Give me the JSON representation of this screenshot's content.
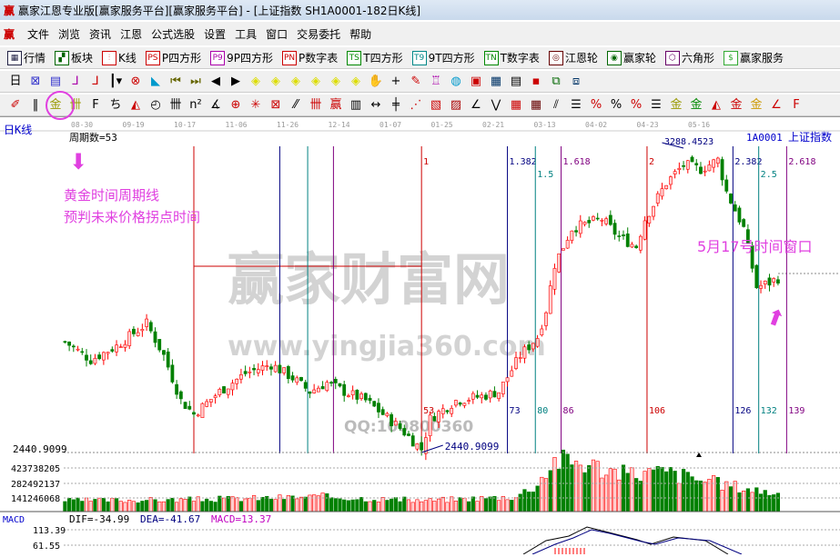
{
  "window": {
    "title": "赢家江恩专业版[赢家服务平台][赢家服务平台] - [上证指数  SH1A0001-182日K线]",
    "logo": "赢"
  },
  "menu": [
    "文件",
    "浏览",
    "资讯",
    "江恩",
    "公式选股",
    "设置",
    "工具",
    "窗口",
    "交易委托",
    "帮助"
  ],
  "toolbar1": [
    {
      "label": "行情",
      "icon": "grid-icon",
      "glyph": "▦",
      "color": "#224"
    },
    {
      "label": "板块",
      "icon": "blocks-icon",
      "glyph": "▞",
      "color": "#060"
    },
    {
      "label": "K线",
      "icon": "kline-icon",
      "glyph": "⫶",
      "color": "#c00"
    },
    {
      "label": "P四方形",
      "icon": "ps-icon",
      "glyph": "PS",
      "color": "#c00"
    },
    {
      "label": "9P四方形",
      "icon": "p9-icon",
      "glyph": "P9",
      "color": "#a0a"
    },
    {
      "label": "P数字表",
      "icon": "pn-icon",
      "glyph": "PN",
      "color": "#c00"
    },
    {
      "label": "T四方形",
      "icon": "ts-icon",
      "glyph": "TS",
      "color": "#080"
    },
    {
      "label": "9T四方形",
      "icon": "t9-icon",
      "glyph": "T9",
      "color": "#088"
    },
    {
      "label": "T数字表",
      "icon": "tn-icon",
      "glyph": "TN",
      "color": "#080"
    },
    {
      "label": "江恩轮",
      "icon": "gann-wheel-icon",
      "glyph": "◎",
      "color": "#600"
    },
    {
      "label": "赢家轮",
      "icon": "winner-wheel-icon",
      "glyph": "◉",
      "color": "#060"
    },
    {
      "label": "六角形",
      "icon": "hexagon-icon",
      "glyph": "⬡",
      "color": "#606"
    },
    {
      "label": "赢家服务",
      "icon": "dollar-icon",
      "glyph": "$",
      "color": "#3a3"
    }
  ],
  "toolbar2": [
    {
      "icon": "period-day-icon",
      "glyph": "日▾",
      "color": "#000"
    },
    {
      "icon": "chart-icon",
      "glyph": "⊠",
      "color": "#33c"
    },
    {
      "icon": "doc-icon",
      "glyph": "▤",
      "color": "#33c"
    },
    {
      "icon": "indicator3-icon",
      "glyph": "⅃",
      "color": "#a0a"
    },
    {
      "icon": "indicator9-icon",
      "glyph": "⅃",
      "color": "#c00"
    },
    {
      "icon": "candle-icon",
      "glyph": "┃▾",
      "color": "#000"
    },
    {
      "icon": "cross-icon",
      "glyph": "⊗",
      "color": "#c00"
    },
    {
      "icon": "color-icon",
      "glyph": "◣",
      "color": "#09c"
    },
    {
      "icon": "first-icon",
      "glyph": "⏮",
      "color": "#660"
    },
    {
      "icon": "last-icon",
      "glyph": "⏭",
      "color": "#660"
    },
    {
      "icon": "left-icon",
      "glyph": "◀",
      "color": "#000"
    },
    {
      "icon": "right-icon",
      "glyph": "▶",
      "color": "#000"
    },
    {
      "icon": "zoom-left-icon",
      "glyph": "◈",
      "color": "#dd0"
    },
    {
      "icon": "zoom-right-icon",
      "glyph": "◈",
      "color": "#dd0"
    },
    {
      "icon": "expand-icon",
      "glyph": "◈",
      "color": "#dd0"
    },
    {
      "icon": "shrink-icon",
      "glyph": "◈",
      "color": "#dd0"
    },
    {
      "icon": "up-icon",
      "glyph": "◈",
      "color": "#dd0"
    },
    {
      "icon": "down-icon",
      "glyph": "◈",
      "color": "#dd0"
    },
    {
      "icon": "hand-icon",
      "glyph": "✋",
      "color": "#000"
    },
    {
      "icon": "crosshair-icon",
      "glyph": "+",
      "color": "#000"
    },
    {
      "icon": "pen-icon",
      "glyph": "✎",
      "color": "#c00"
    },
    {
      "icon": "tool-icon",
      "glyph": "♖",
      "color": "#a0a"
    },
    {
      "icon": "globe-icon",
      "glyph": "◍",
      "color": "#09c"
    },
    {
      "icon": "calendar-icon",
      "glyph": "▣",
      "color": "#c00"
    },
    {
      "icon": "calculator-icon",
      "glyph": "▦",
      "color": "#036"
    },
    {
      "icon": "notes-icon",
      "glyph": "▤",
      "color": "#000"
    },
    {
      "icon": "save-icon",
      "glyph": "▪",
      "color": "#c00"
    },
    {
      "icon": "network-icon",
      "glyph": "⧉",
      "color": "#060"
    },
    {
      "icon": "export-icon",
      "glyph": "⧈",
      "color": "#036"
    }
  ],
  "toolbar3": [
    {
      "icon": "pencil-icon",
      "glyph": "✐",
      "color": "#c00"
    },
    {
      "icon": "parallel-icon",
      "glyph": "‖",
      "color": "#000"
    },
    {
      "icon": "golden-time-cycle-icon",
      "glyph": "金",
      "color": "#990"
    },
    {
      "icon": "time-cycle-icon",
      "glyph": "卌",
      "color": "#990"
    },
    {
      "icon": "fib-icon",
      "glyph": "F",
      "color": "#000"
    },
    {
      "icon": "spiral-icon",
      "glyph": "ち",
      "color": "#000"
    },
    {
      "icon": "fan-icon",
      "glyph": "◭",
      "color": "#c00"
    },
    {
      "icon": "circle-icon",
      "glyph": "◴",
      "color": "#000"
    },
    {
      "icon": "lines-icon",
      "glyph": "卌",
      "color": "#000"
    },
    {
      "icon": "n2-icon",
      "glyph": "n²",
      "color": "#000"
    },
    {
      "icon": "angle-icon",
      "glyph": "∡",
      "color": "#000"
    },
    {
      "icon": "target-icon",
      "glyph": "⊕",
      "color": "#c00"
    },
    {
      "icon": "star-icon",
      "glyph": "✳",
      "color": "#c00"
    },
    {
      "icon": "box-icon",
      "glyph": "⊠",
      "color": "#c00"
    },
    {
      "icon": "slash-icon",
      "glyph": "⁄⁄",
      "color": "#000"
    },
    {
      "icon": "bars-icon",
      "glyph": "卌",
      "color": "#c00"
    },
    {
      "icon": "winner-icon",
      "glyph": "赢",
      "color": "#c00"
    },
    {
      "icon": "ruler-icon",
      "glyph": "▥",
      "color": "#000"
    },
    {
      "icon": "width-icon",
      "glyph": "↔",
      "color": "#000"
    },
    {
      "icon": "grid-line-icon",
      "glyph": "╪",
      "color": "#000"
    },
    {
      "icon": "fan-lines-icon",
      "glyph": "⋰",
      "color": "#c00"
    },
    {
      "icon": "square-icon",
      "glyph": "▧",
      "color": "#c00"
    },
    {
      "icon": "square2-icon",
      "glyph": "▨",
      "color": "#a00"
    },
    {
      "icon": "angle2-icon",
      "glyph": "∠",
      "color": "#000"
    },
    {
      "icon": "wave-icon",
      "glyph": "⋁",
      "color": "#000"
    },
    {
      "icon": "table-icon",
      "glyph": "▦",
      "color": "#c00"
    },
    {
      "icon": "table2-icon",
      "glyph": "▦",
      "color": "#600"
    },
    {
      "icon": "stripes-icon",
      "glyph": "⫽",
      "color": "#000"
    },
    {
      "icon": "list-icon",
      "glyph": "☰",
      "color": "#000"
    },
    {
      "icon": "percent-red-icon",
      "glyph": "%",
      "color": "#c00"
    },
    {
      "icon": "percent-icon",
      "glyph": "%",
      "color": "#000"
    },
    {
      "icon": "percent2-icon",
      "glyph": "%",
      "color": "#c00"
    },
    {
      "icon": "equal-icon",
      "glyph": "☰",
      "color": "#000"
    },
    {
      "icon": "gold-circle-icon",
      "glyph": "金",
      "color": "#990"
    },
    {
      "icon": "gold-line-icon",
      "glyph": "金",
      "color": "#080"
    },
    {
      "icon": "fan2-icon",
      "glyph": "◭",
      "color": "#c00"
    },
    {
      "icon": "gold-box-icon",
      "glyph": "金",
      "color": "#c00"
    },
    {
      "icon": "gold-box2-icon",
      "glyph": "金",
      "color": "#c90"
    },
    {
      "icon": "angle3-icon",
      "glyph": "∠",
      "color": "#c00"
    },
    {
      "icon": "f-icon",
      "glyph": "F",
      "color": "#c00"
    }
  ],
  "chart": {
    "period_label": "日K线",
    "cycle_count": "周期数=53",
    "symbol": "1A0001",
    "name": "上证指数",
    "dates": [
      "08-30",
      "09-19",
      "10-17",
      "11-06",
      "11-26",
      "12-14",
      "01-07",
      "01-25",
      "02-21",
      "03-13",
      "04-02",
      "04-23",
      "05-16"
    ],
    "low_label": "2440.9099",
    "low_axis": "2440.9099",
    "high_label": "3288.4523",
    "price_min": 2440.91,
    "price_max": 3288.45,
    "ref_level": 2961,
    "cycle_lines": [
      {
        "bar": 0,
        "color": "#cc0000",
        "top": "",
        "bottom": ""
      },
      {
        "bar": 20,
        "color": "#000080",
        "top": "",
        "bottom": ""
      },
      {
        "bar": 26.5,
        "color": "#008080",
        "top": "",
        "bottom": ""
      },
      {
        "bar": 32.5,
        "color": "#800080",
        "top": "",
        "bottom": ""
      },
      {
        "bar": 53,
        "color": "#cc0000",
        "top": "1",
        "bottom": "53"
      },
      {
        "bar": 73,
        "color": "#000080",
        "top": "1.382",
        "bottom": "73"
      },
      {
        "bar": 79.5,
        "color": "#008080",
        "top": "1.5",
        "bottom": "80"
      },
      {
        "bar": 85.5,
        "color": "#800080",
        "top": "1.618",
        "bottom": "86"
      },
      {
        "bar": 105.5,
        "color": "#cc0000",
        "top": "2",
        "bottom": "106"
      },
      {
        "bar": 125.5,
        "color": "#000080",
        "top": "2.382",
        "bottom": "126"
      },
      {
        "bar": 131.5,
        "color": "#008080",
        "top": "2.5",
        "bottom": "132"
      },
      {
        "bar": 138,
        "color": "#800080",
        "top": "2.618",
        "bottom": "139"
      }
    ],
    "price_keypoints": [
      [
        -30,
        2750
      ],
      [
        -24,
        2700
      ],
      [
        -18,
        2738
      ],
      [
        -11,
        2801
      ],
      [
        -7,
        2712
      ],
      [
        -3,
        2586
      ],
      [
        0,
        2548
      ],
      [
        6,
        2611
      ],
      [
        12,
        2662
      ],
      [
        18,
        2687
      ],
      [
        23,
        2649
      ],
      [
        27,
        2611
      ],
      [
        31,
        2636
      ],
      [
        35,
        2611
      ],
      [
        40,
        2586
      ],
      [
        44,
        2548
      ],
      [
        48,
        2509
      ],
      [
        53,
        2450
      ],
      [
        55,
        2535
      ],
      [
        61,
        2586
      ],
      [
        67,
        2598
      ],
      [
        71,
        2611
      ],
      [
        76,
        2712
      ],
      [
        80,
        2763
      ],
      [
        82,
        2839
      ],
      [
        84,
        2966
      ],
      [
        88,
        3067
      ],
      [
        95,
        3093
      ],
      [
        99,
        3042
      ],
      [
        103,
        3017
      ],
      [
        105,
        3093
      ],
      [
        110,
        3194
      ],
      [
        114,
        3245
      ],
      [
        118,
        3232
      ],
      [
        122,
        3258
      ],
      [
        124,
        3169
      ],
      [
        128,
        3067
      ],
      [
        131,
        2903
      ],
      [
        134,
        2915
      ],
      [
        136,
        2928
      ]
    ],
    "volume_axis": [
      "423738205",
      "282492137",
      "141246068"
    ],
    "volume_max": 565000000,
    "volume_keypoints": [
      [
        -30,
        110000000
      ],
      [
        0,
        120000000
      ],
      [
        30,
        150000000
      ],
      [
        53,
        110000000
      ],
      [
        75,
        150000000
      ],
      [
        80,
        280000000
      ],
      [
        84,
        520000000
      ],
      [
        90,
        500000000
      ],
      [
        100,
        380000000
      ],
      [
        110,
        400000000
      ],
      [
        120,
        300000000
      ],
      [
        136,
        180000000
      ]
    ],
    "colors": {
      "up": "#ff0000",
      "down": "#008000",
      "up_fill": "#ffd0d0"
    }
  },
  "macd": {
    "label": "MACD",
    "dif": "DIF=-34.99",
    "dea": "DEA=-41.67",
    "macd": "MACD=13.37",
    "axis": [
      "113.39",
      "61.55"
    ]
  },
  "annotations": {
    "golden_line": "黄金时间周期线",
    "predict": "预判未来价格拐点时间",
    "window": "5月17号时间窗口"
  },
  "watermark": {
    "text": "赢家财富网",
    "url": "www.yingjia360.com",
    "qq": "QQ:100800360"
  }
}
